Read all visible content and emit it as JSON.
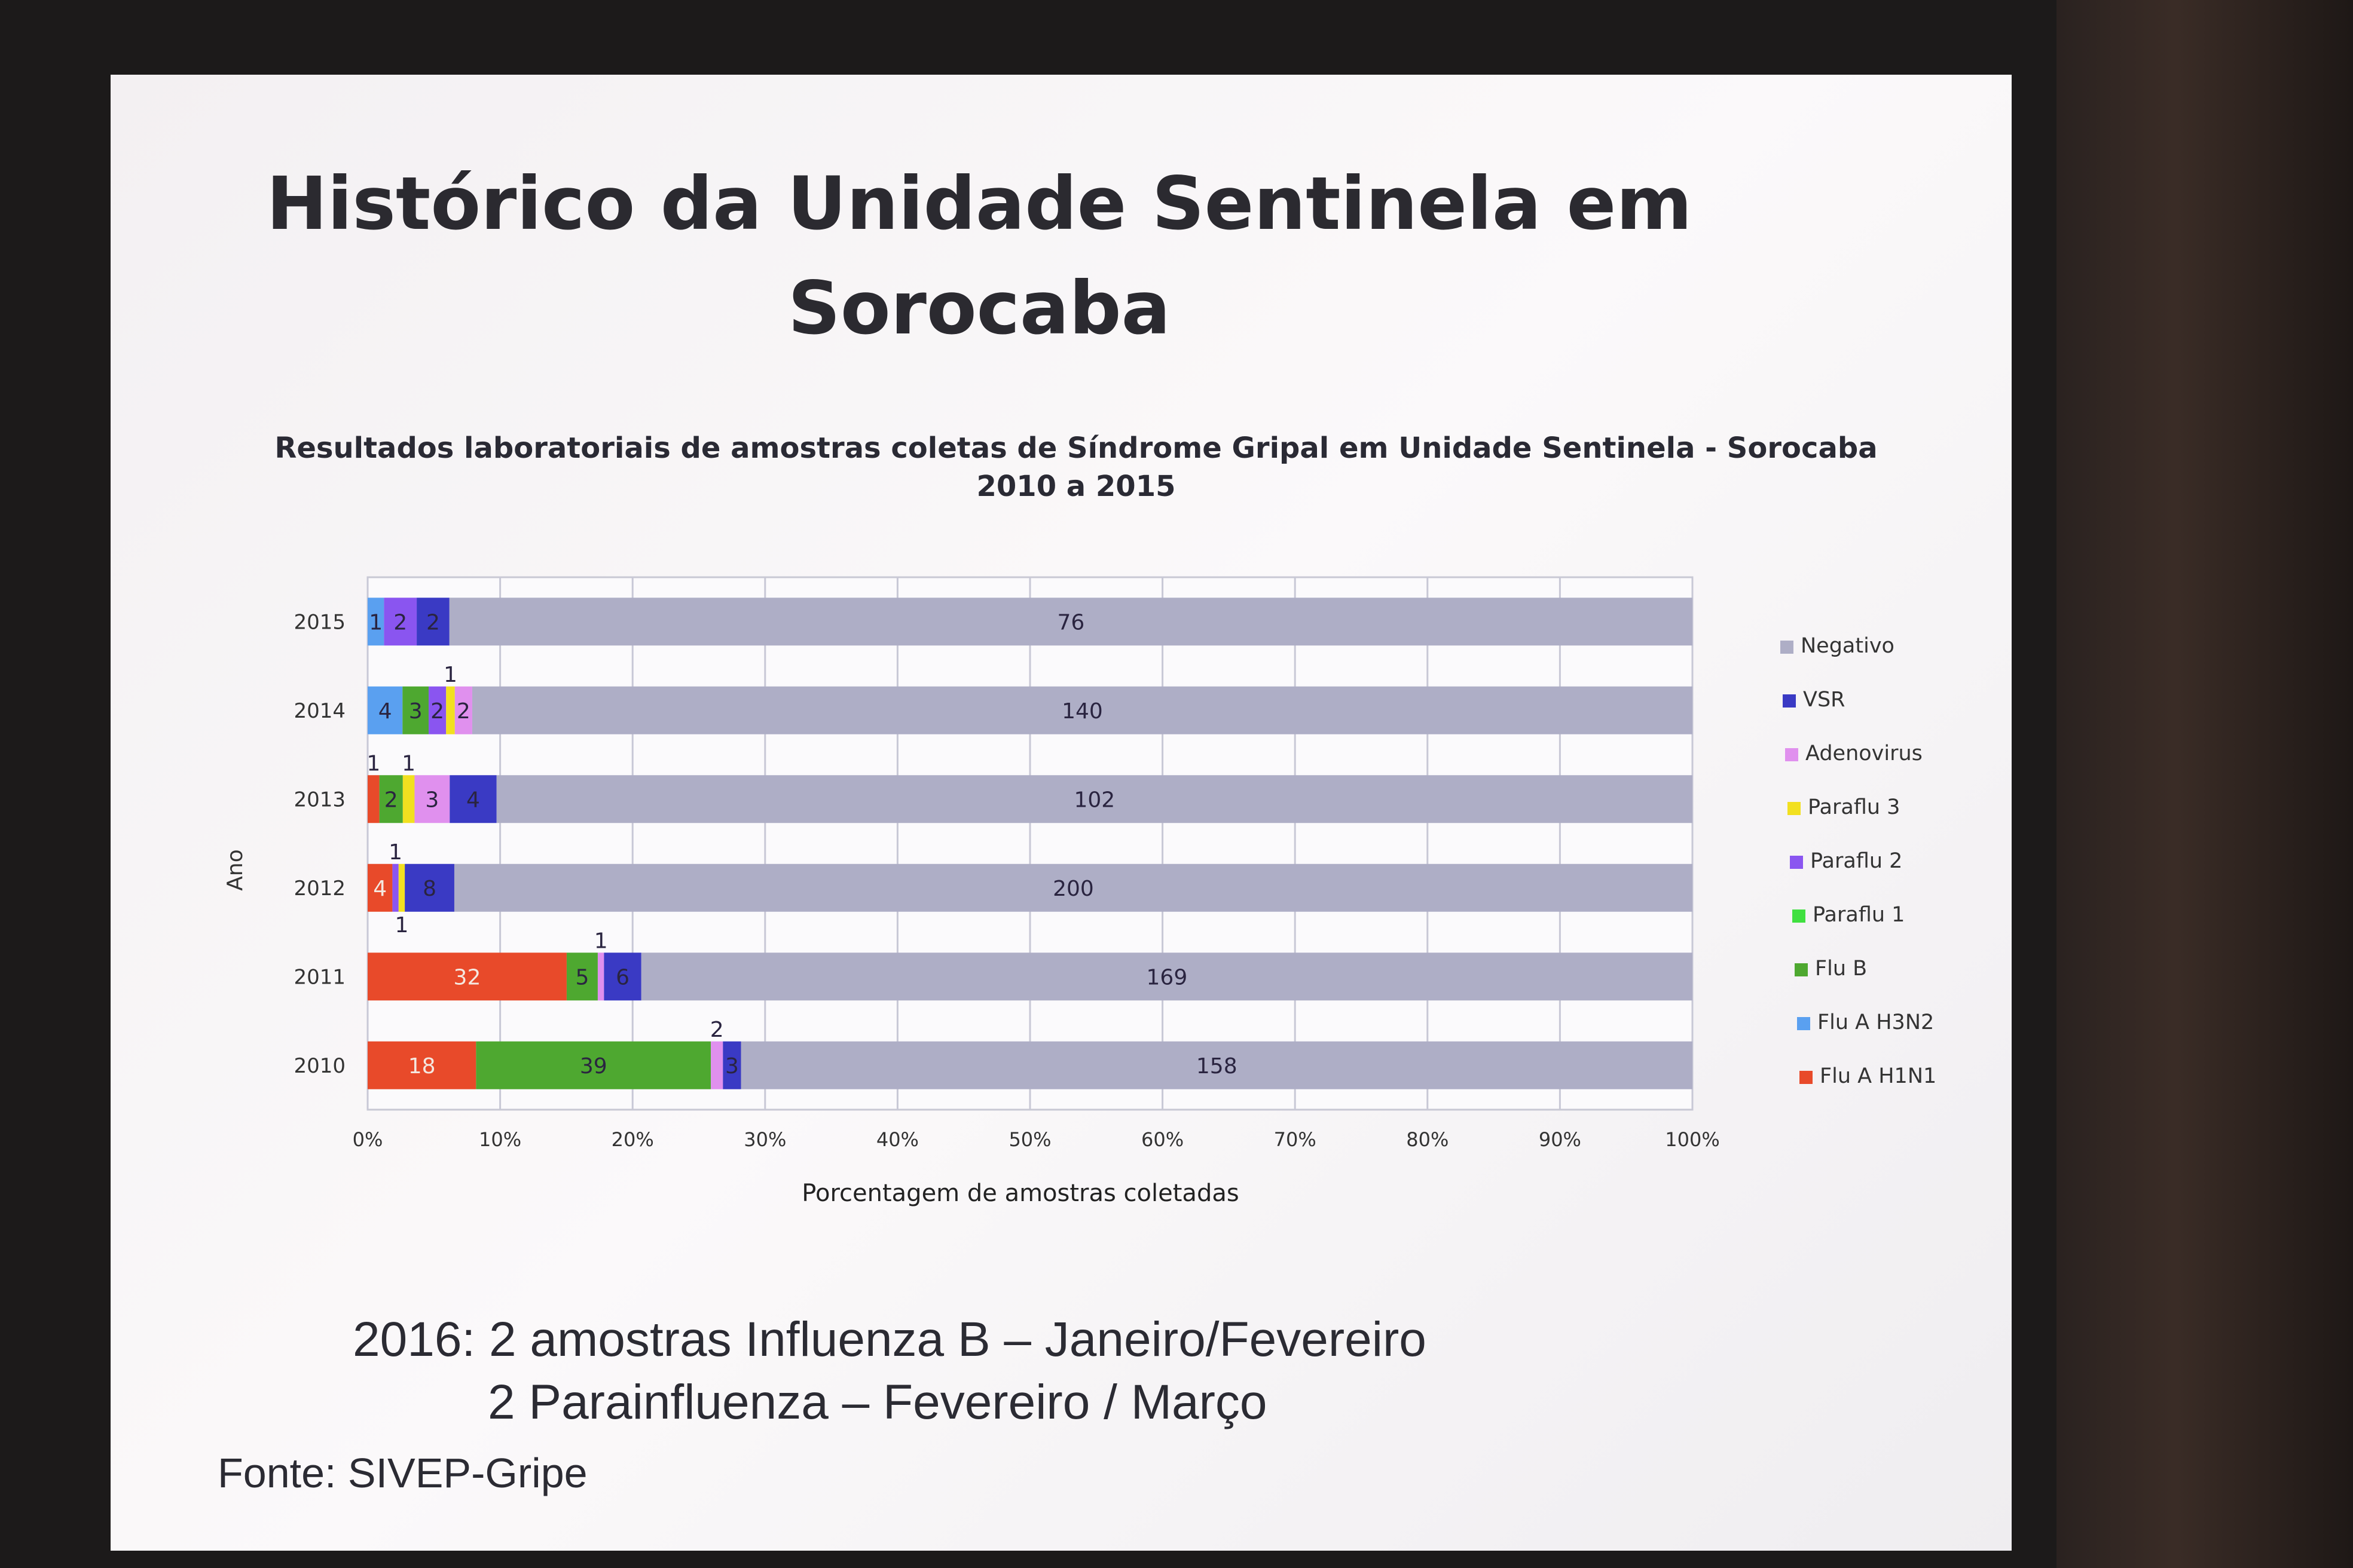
{
  "slide": {
    "title_line1": "Histórico da Unidade Sentinela em",
    "title_line2": "Sorocaba",
    "note_line1": "2016: 2 amostras Influenza B – Janeiro/Fevereiro",
    "note_line2": "2 Parainfluenza – Fevereiro / Março",
    "source": "Fonte: SIVEP-Gripe"
  },
  "chart_data": {
    "type": "bar",
    "orientation": "horizontal",
    "stacked": "percent",
    "title": "Resultados laboratoriais de amostras coletas de Síndrome Gripal em Unidade Sentinela - Sorocaba",
    "subtitle": "2010 a 2015",
    "xlabel": "Porcentagem de amostras coletadas",
    "ylabel": "Ano",
    "xlim": [
      0,
      100
    ],
    "xticks": [
      "0%",
      "10%",
      "20%",
      "30%",
      "40%",
      "50%",
      "60%",
      "70%",
      "80%",
      "90%",
      "100%"
    ],
    "grid": true,
    "legend_position": "right",
    "categories": [
      "2015",
      "2014",
      "2013",
      "2012",
      "2011",
      "2010"
    ],
    "series": [
      {
        "name": "Flu A H1N1",
        "color": "#e84a2a",
        "values": [
          0,
          0,
          1,
          4,
          32,
          18
        ]
      },
      {
        "name": "Flu A H3N2",
        "color": "#5aa0f0",
        "values": [
          1,
          4,
          0,
          0,
          0,
          0
        ]
      },
      {
        "name": "Flu B",
        "color": "#4ea830",
        "values": [
          0,
          3,
          2,
          0,
          5,
          39
        ]
      },
      {
        "name": "Paraflu 1",
        "color": "#40e040",
        "values": [
          0,
          0,
          0,
          0,
          0,
          0
        ]
      },
      {
        "name": "Paraflu 2",
        "color": "#8a55f0",
        "values": [
          2,
          2,
          0,
          1,
          0,
          0
        ]
      },
      {
        "name": "Paraflu 3",
        "color": "#f2e020",
        "values": [
          0,
          1,
          1,
          1,
          0,
          0
        ]
      },
      {
        "name": "Adenovirus",
        "color": "#e090ee",
        "values": [
          0,
          2,
          3,
          0,
          1,
          2
        ]
      },
      {
        "name": "VSR",
        "color": "#3a3ac4",
        "values": [
          2,
          0,
          4,
          8,
          6,
          3
        ]
      },
      {
        "name": "Negativo",
        "color": "#aeaec6",
        "values": [
          76,
          140,
          102,
          200,
          169,
          158
        ]
      }
    ],
    "legend_order": [
      "Negativo",
      "VSR",
      "Adenovirus",
      "Paraflu 3",
      "Paraflu 2",
      "Paraflu 1",
      "Flu B",
      "Flu A H3N2",
      "Flu A H1N1"
    ],
    "hidden_labels": [
      [
        0,
        1,
        0,
        0,
        0,
        1,
        0,
        0,
        0
      ]
    ]
  }
}
